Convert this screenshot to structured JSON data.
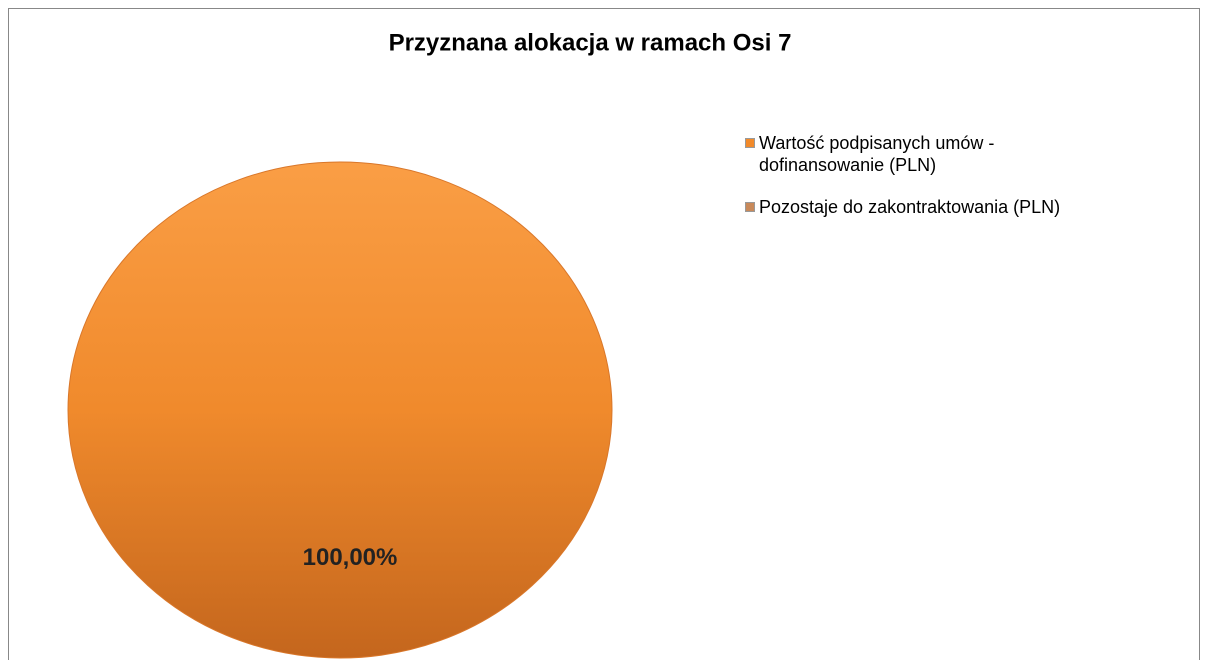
{
  "chart_data": {
    "type": "pie",
    "title": "Przyznana alokacja w ramach Osi 7",
    "categories": [
      "Wartość podpisanych umów - dofinansowanie (PLN)",
      "Pozostaje do zakontraktowania (PLN)"
    ],
    "values": [
      100,
      0
    ],
    "value_labels": [
      "100,00%",
      null
    ],
    "colors": [
      "#f28a2a",
      "#c8895a"
    ],
    "legend": "right"
  }
}
